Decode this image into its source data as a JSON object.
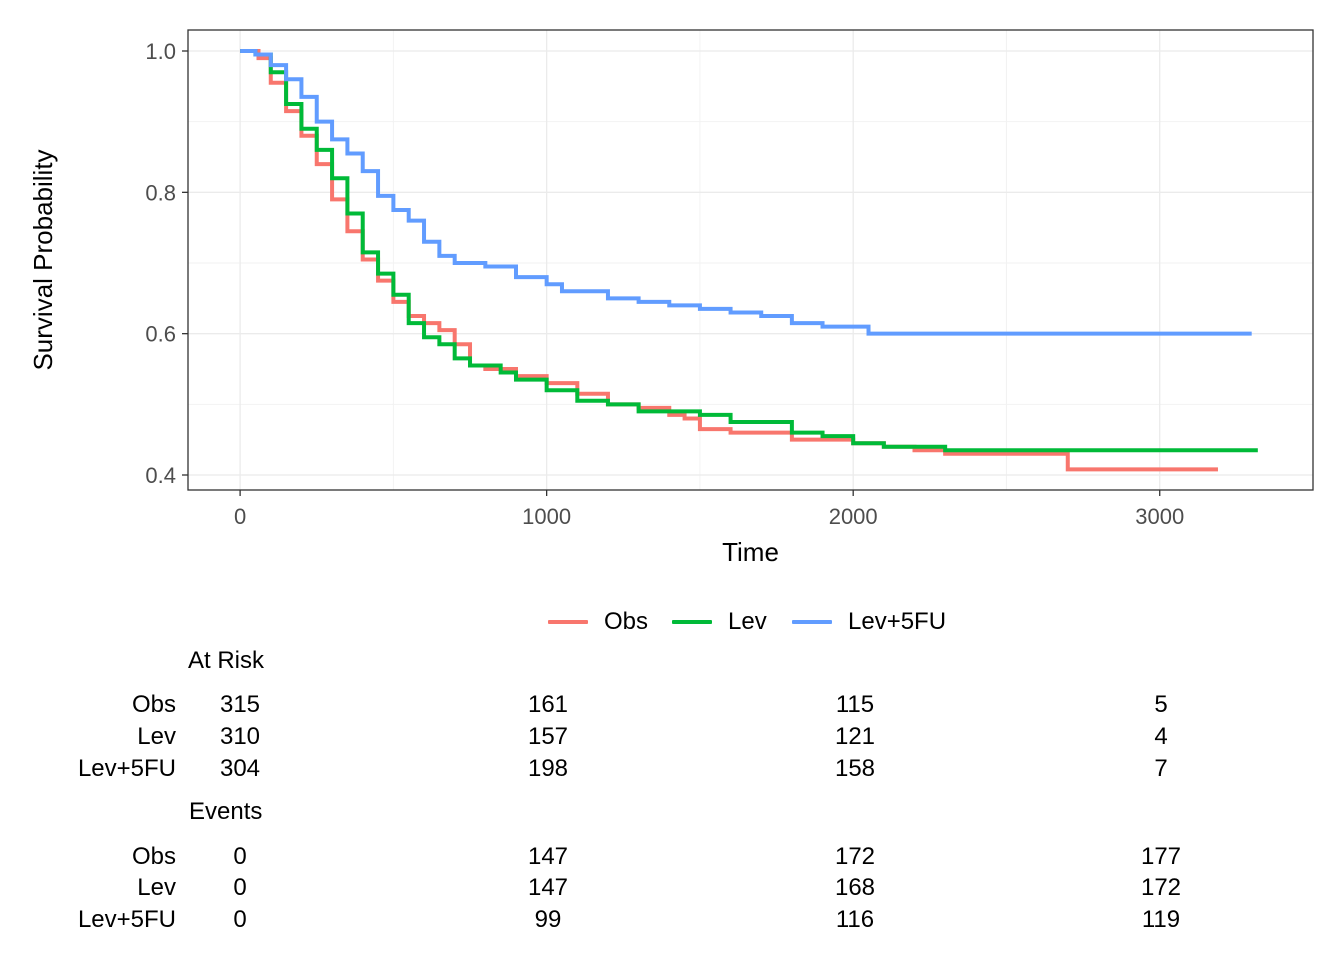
{
  "chart_data": {
    "type": "line",
    "title": "",
    "xlabel": "Time",
    "ylabel": "Survival Probability",
    "xlim": [
      -170,
      3500
    ],
    "ylim": [
      0.38,
      1.0
    ],
    "x_ticks": [
      0,
      1000,
      2000,
      3000
    ],
    "y_ticks": [
      0.4,
      0.6,
      0.8,
      1.0
    ],
    "y_tick_labels": [
      "0.4",
      "0.6",
      "0.8",
      "1.0"
    ],
    "grid": true,
    "legend_position": "bottom",
    "step": true,
    "series": [
      {
        "name": "Obs",
        "color": "#F8766D",
        "points": [
          [
            0,
            1.0
          ],
          [
            60,
            0.99
          ],
          [
            100,
            0.955
          ],
          [
            150,
            0.915
          ],
          [
            200,
            0.88
          ],
          [
            250,
            0.84
          ],
          [
            300,
            0.79
          ],
          [
            350,
            0.745
          ],
          [
            400,
            0.705
          ],
          [
            450,
            0.675
          ],
          [
            500,
            0.645
          ],
          [
            550,
            0.625
          ],
          [
            600,
            0.615
          ],
          [
            650,
            0.605
          ],
          [
            700,
            0.585
          ],
          [
            750,
            0.555
          ],
          [
            800,
            0.55
          ],
          [
            900,
            0.54
          ],
          [
            1000,
            0.53
          ],
          [
            1100,
            0.515
          ],
          [
            1200,
            0.5
          ],
          [
            1300,
            0.495
          ],
          [
            1400,
            0.485
          ],
          [
            1450,
            0.48
          ],
          [
            1500,
            0.465
          ],
          [
            1600,
            0.46
          ],
          [
            1800,
            0.45
          ],
          [
            2000,
            0.445
          ],
          [
            2100,
            0.44
          ],
          [
            2200,
            0.435
          ],
          [
            2300,
            0.43
          ],
          [
            2500,
            0.43
          ],
          [
            2700,
            0.408
          ],
          [
            3190,
            0.408
          ]
        ]
      },
      {
        "name": "Lev",
        "color": "#00BA38",
        "points": [
          [
            0,
            1.0
          ],
          [
            50,
            0.995
          ],
          [
            100,
            0.97
          ],
          [
            150,
            0.925
          ],
          [
            200,
            0.89
          ],
          [
            250,
            0.86
          ],
          [
            300,
            0.82
          ],
          [
            350,
            0.77
          ],
          [
            400,
            0.715
          ],
          [
            450,
            0.685
          ],
          [
            500,
            0.655
          ],
          [
            550,
            0.615
          ],
          [
            600,
            0.595
          ],
          [
            650,
            0.585
          ],
          [
            700,
            0.565
          ],
          [
            750,
            0.555
          ],
          [
            850,
            0.545
          ],
          [
            900,
            0.535
          ],
          [
            1000,
            0.52
          ],
          [
            1100,
            0.505
          ],
          [
            1200,
            0.5
          ],
          [
            1300,
            0.49
          ],
          [
            1400,
            0.49
          ],
          [
            1500,
            0.485
          ],
          [
            1600,
            0.475
          ],
          [
            1800,
            0.46
          ],
          [
            1900,
            0.455
          ],
          [
            2000,
            0.445
          ],
          [
            2100,
            0.44
          ],
          [
            2200,
            0.44
          ],
          [
            2300,
            0.435
          ],
          [
            2500,
            0.435
          ],
          [
            3320,
            0.435
          ]
        ]
      },
      {
        "name": "Lev+5FU",
        "color": "#619CFF",
        "points": [
          [
            0,
            1.0
          ],
          [
            50,
            0.995
          ],
          [
            100,
            0.98
          ],
          [
            150,
            0.96
          ],
          [
            200,
            0.935
          ],
          [
            250,
            0.9
          ],
          [
            300,
            0.875
          ],
          [
            350,
            0.855
          ],
          [
            400,
            0.83
          ],
          [
            450,
            0.795
          ],
          [
            500,
            0.775
          ],
          [
            550,
            0.76
          ],
          [
            600,
            0.73
          ],
          [
            650,
            0.71
          ],
          [
            700,
            0.7
          ],
          [
            800,
            0.695
          ],
          [
            900,
            0.68
          ],
          [
            1000,
            0.67
          ],
          [
            1050,
            0.66
          ],
          [
            1200,
            0.65
          ],
          [
            1300,
            0.645
          ],
          [
            1400,
            0.64
          ],
          [
            1500,
            0.635
          ],
          [
            1600,
            0.63
          ],
          [
            1700,
            0.625
          ],
          [
            1800,
            0.615
          ],
          [
            1900,
            0.61
          ],
          [
            2000,
            0.61
          ],
          [
            2050,
            0.6
          ],
          [
            3300,
            0.6
          ]
        ]
      }
    ]
  },
  "risk_table": {
    "times": [
      "0",
      "1000",
      "2000",
      "3000"
    ],
    "at_risk": {
      "title": "At Risk",
      "rows": [
        {
          "label": "Obs",
          "values": [
            "315",
            "161",
            "115",
            "5"
          ]
        },
        {
          "label": "Lev",
          "values": [
            "310",
            "157",
            "121",
            "4"
          ]
        },
        {
          "label": "Lev+5FU",
          "values": [
            "304",
            "198",
            "158",
            "7"
          ]
        }
      ]
    },
    "events": {
      "title": "Events",
      "rows": [
        {
          "label": "Obs",
          "values": [
            "0",
            "147",
            "172",
            "177"
          ]
        },
        {
          "label": "Lev",
          "values": [
            "0",
            "147",
            "168",
            "172"
          ]
        },
        {
          "label": "Lev+5FU",
          "values": [
            "0",
            "99",
            "116",
            "119"
          ]
        }
      ]
    }
  }
}
